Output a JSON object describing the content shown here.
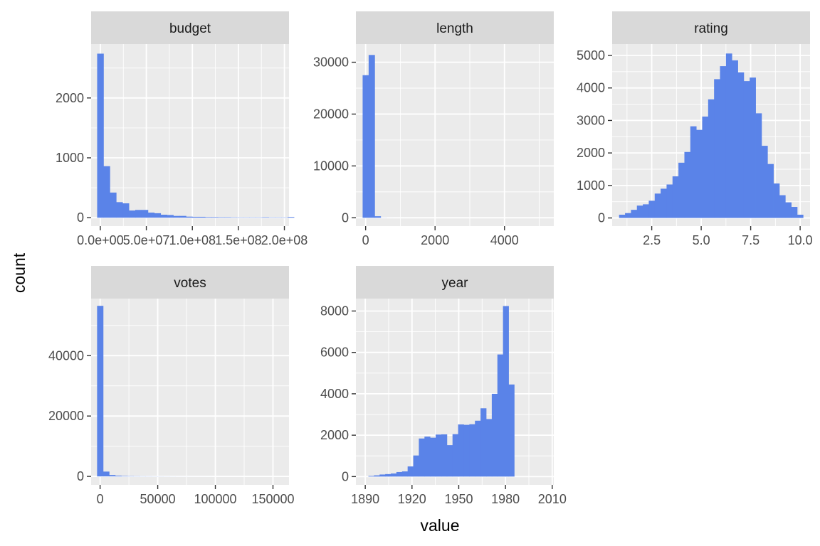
{
  "chart_data": {
    "type": "bar",
    "subtype": "faceted-histogram",
    "xlabel": "value",
    "ylabel": "count",
    "bar_color": "#5A83E8",
    "panel_background": "#EBEBEB",
    "strip_background": "#D9D9D9",
    "grid": true,
    "facets": [
      {
        "name": "budget",
        "xlim": [
          -10000000.0,
          205000000.0
        ],
        "ylim": [
          -140,
          2900
        ],
        "x_ticks": [
          0,
          50000000,
          100000000,
          150000000,
          200000000
        ],
        "x_tick_labels": [
          "0.0e+00",
          "5.0e+07",
          "1.0e+08",
          "1.5e+08",
          "2.0e+08"
        ],
        "y_ticks": [
          0,
          1000,
          2000
        ],
        "y_tick_labels": [
          "0",
          "1000",
          "2000"
        ],
        "bin_start": -3450000,
        "bin_width": 6900000,
        "counts": [
          2740,
          860,
          420,
          260,
          240,
          120,
          130,
          130,
          85,
          75,
          50,
          45,
          30,
          30,
          18,
          15,
          15,
          10,
          10,
          8,
          8,
          6,
          5,
          5,
          5,
          5,
          8,
          5,
          5,
          5,
          12
        ]
      },
      {
        "name": "length",
        "xlim": [
          -280,
          5420
        ],
        "ylim": [
          -1600,
          33500
        ],
        "x_ticks": [
          0,
          2000,
          4000
        ],
        "x_tick_labels": [
          "0",
          "2000",
          "4000"
        ],
        "y_ticks": [
          0,
          10000,
          20000,
          30000
        ],
        "y_tick_labels": [
          "0",
          "10000",
          "20000",
          "30000"
        ],
        "bin_start": -86,
        "bin_width": 173,
        "counts": [
          27500,
          31400,
          300,
          15,
          5,
          3,
          2,
          2,
          1,
          1,
          1,
          1,
          1,
          1,
          1,
          1,
          1,
          1,
          1,
          1,
          1,
          1,
          1,
          1,
          1,
          1,
          1,
          1,
          1,
          1,
          1
        ]
      },
      {
        "name": "rating",
        "xlim": [
          0.5,
          10.5
        ],
        "ylim": [
          -250,
          5350
        ],
        "x_ticks": [
          2.5,
          5.0,
          7.5,
          10.0
        ],
        "x_tick_labels": [
          "2.5",
          "5.0",
          "7.5",
          "10.0"
        ],
        "y_ticks": [
          0,
          1000,
          2000,
          3000,
          4000,
          5000
        ],
        "y_tick_labels": [
          "0",
          "1000",
          "2000",
          "3000",
          "4000",
          "5000"
        ],
        "bin_start": 0.85,
        "bin_width": 0.3,
        "counts": [
          100,
          150,
          250,
          380,
          420,
          530,
          750,
          900,
          1030,
          1280,
          1700,
          2030,
          2820,
          2710,
          3120,
          3650,
          4270,
          4670,
          5060,
          4850,
          4480,
          4210,
          4320,
          3220,
          2220,
          1660,
          1060,
          700,
          480,
          340,
          100
        ]
      },
      {
        "name": "votes",
        "xlim": [
          -7800,
          163900
        ],
        "ylim": [
          -2800,
          58900
        ],
        "x_ticks": [
          0,
          50000,
          100000,
          150000
        ],
        "x_tick_labels": [
          "0",
          "50000",
          "100000",
          "150000"
        ],
        "y_ticks": [
          0,
          20000,
          40000
        ],
        "y_tick_labels": [
          "0",
          "20000",
          "40000"
        ],
        "bin_start": -2620,
        "bin_width": 5240,
        "counts": [
          56500,
          1600,
          450,
          250,
          150,
          100,
          70,
          50,
          40,
          30,
          25,
          20,
          15,
          10,
          10,
          8,
          6,
          5,
          4,
          3,
          3,
          2,
          2,
          2,
          1,
          1,
          1,
          1,
          1,
          1,
          1
        ]
      },
      {
        "name": "year",
        "xlim": [
          1884,
          2011
        ],
        "ylim": [
          -400,
          8600
        ],
        "x_ticks": [
          1890,
          1920,
          1950,
          1980,
          2010
        ],
        "x_tick_labels": [
          "1890",
          "1920",
          "1950",
          "1980",
          "2010"
        ],
        "y_ticks": [
          0,
          2000,
          4000,
          6000,
          8000
        ],
        "y_tick_labels": [
          "0",
          "2000",
          "4000",
          "6000",
          "8000"
        ],
        "bin_start": 1892,
        "bin_width": 3.6,
        "counts": [
          30,
          60,
          100,
          120,
          150,
          220,
          250,
          490,
          1020,
          1840,
          1930,
          1880,
          2030,
          2040,
          1520,
          2050,
          2520,
          2500,
          2530,
          2700,
          3300,
          2780,
          4000,
          5900,
          8240,
          4450
        ]
      }
    ]
  }
}
